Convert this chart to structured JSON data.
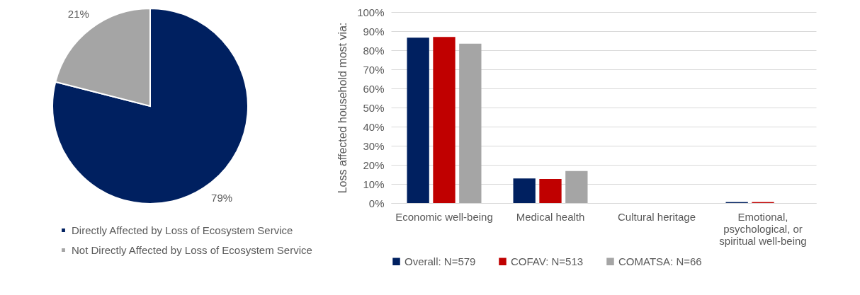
{
  "chart_data": [
    {
      "type": "pie",
      "categories": [
        "Directly Affected by Loss of Ecosystem Service",
        "Not Directly Affected by Loss of Ecosystem Service"
      ],
      "values": [
        79,
        21
      ],
      "colors": [
        "#002060",
        "#a5a5a5"
      ],
      "value_labels": [
        "79%",
        "21%"
      ],
      "legend": "bottom"
    },
    {
      "type": "bar",
      "ylabel": "Loss affected household most via:",
      "categories": [
        "Economic well-being",
        "Medical health",
        "Cultural heritage",
        "Emotional, psychological, or spiritual well-being"
      ],
      "series": [
        {
          "name": "Overall: N=579",
          "color": "#002060",
          "values": [
            86.6,
            12.9,
            0,
            0.5
          ]
        },
        {
          "name": "COFAV: N=513",
          "color": "#c00000",
          "values": [
            86.9,
            12.6,
            0,
            0.5
          ]
        },
        {
          "name": "COMATSA: N=66",
          "color": "#a5a5a5",
          "values": [
            83.4,
            16.8,
            0,
            0
          ]
        }
      ],
      "ylim": [
        0,
        100
      ],
      "yticks": [
        {
          "value": 0,
          "label": "0%"
        },
        {
          "value": 10,
          "label": "10%"
        },
        {
          "value": 20,
          "label": "20%"
        },
        {
          "value": 30,
          "label": "30%"
        },
        {
          "value": 40,
          "label": "40%"
        },
        {
          "value": 50,
          "label": "50%"
        },
        {
          "value": 60,
          "label": "60%"
        },
        {
          "value": 70,
          "label": "70%"
        },
        {
          "value": 80,
          "label": "80%"
        },
        {
          "value": 90,
          "label": "90%"
        },
        {
          "value": 100,
          "label": "100%"
        }
      ],
      "grid": "y",
      "legend": "bottom"
    }
  ]
}
